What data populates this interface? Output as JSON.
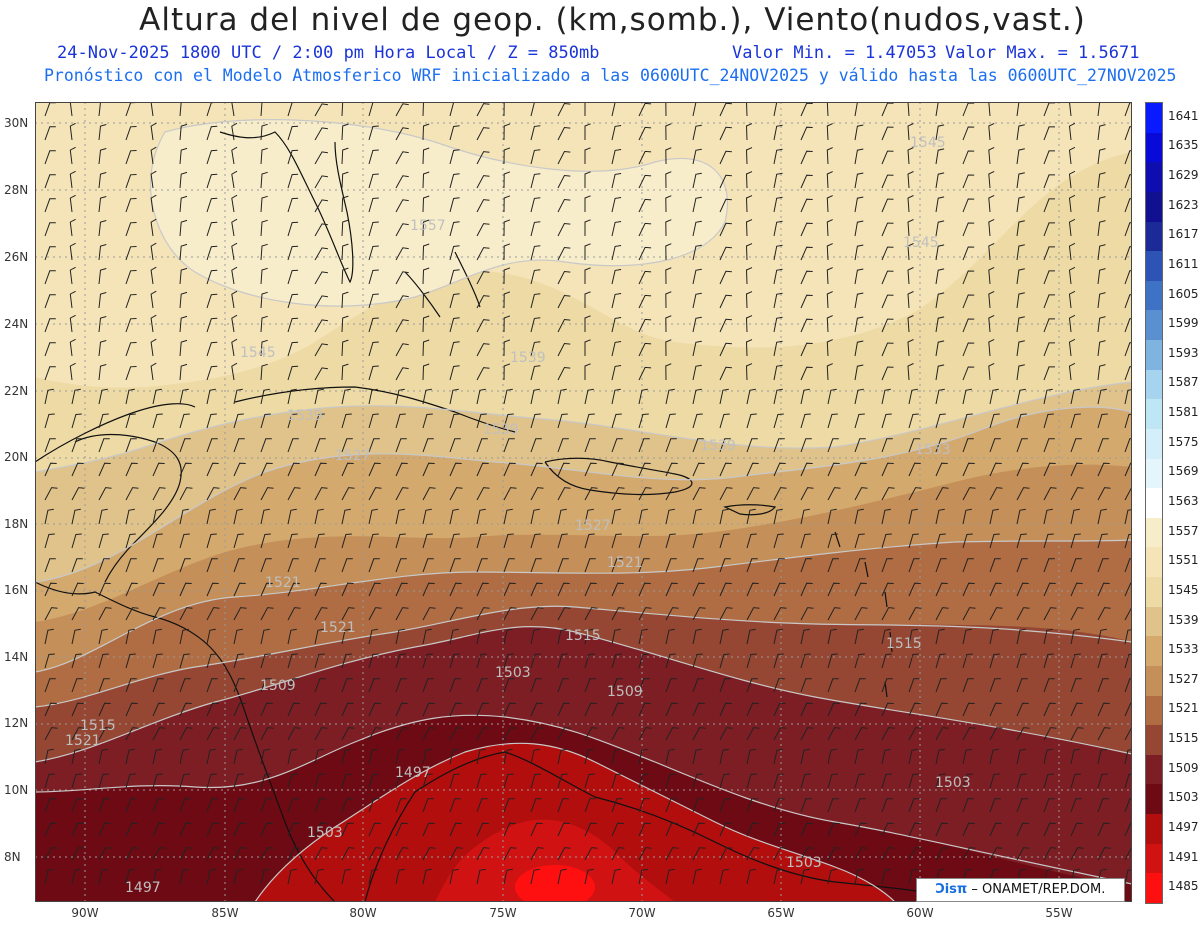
{
  "title": "Altura del nivel de geop. (km,somb.), Viento(nudos,vast.)",
  "subtitle": {
    "date_time": "24-Nov-2025  1800 UTC / 2:00 pm Hora Local / Z = 850mb",
    "min_value": "Valor Min. = 1.47053",
    "max_value": "Valor Max. = 1.5671",
    "model_info": "Pronóstico con el Modelo Atmosferico WRF inicializado a las 0600UTC_24NOV2025 y válido hasta las  0600UTC_27NOV2025"
  },
  "latitude_labels": [
    "30N",
    "28N",
    "26N",
    "24N",
    "22N",
    "20N",
    "18N",
    "16N",
    "14N",
    "12N",
    "10N",
    "8N"
  ],
  "longitude_labels": [
    "90W",
    "85W",
    "80W",
    "75W",
    "70W",
    "65W",
    "60W",
    "55W"
  ],
  "colorbar": {
    "levels": [
      "1641",
      "1635",
      "1629",
      "1623",
      "1617",
      "1611",
      "1605",
      "1599",
      "1593",
      "1587",
      "1581",
      "1575",
      "1569",
      "1563",
      "1557",
      "1551",
      "1545",
      "1539",
      "1533",
      "1527",
      "1521",
      "1515",
      "1509",
      "1503",
      "1497",
      "1491",
      "1485"
    ],
    "colors": [
      "#0a1aff",
      "#0a0ad8",
      "#0d0db0",
      "#101090",
      "#1c2a98",
      "#2d54b4",
      "#3d72c4",
      "#5a8fd0",
      "#7fb3e0",
      "#a6d4ee",
      "#bfe6f5",
      "#d4eff9",
      "#e4f6fc",
      "#ffffff",
      "#f8edcb",
      "#f4e4b8",
      "#eddaa4",
      "#e0c38a",
      "#d4a96e",
      "#c48f58",
      "#b06d44",
      "#954733",
      "#7d1e24",
      "#6e0a14",
      "#b20e0e",
      "#d11212",
      "#ff1010"
    ]
  },
  "contour_labels": [
    "1557",
    "1545",
    "1545",
    "1545",
    "1539",
    "1539",
    "1539",
    "1539",
    "1533",
    "1527",
    "1527",
    "1521",
    "1521",
    "1521",
    "1515",
    "1515",
    "1509",
    "1509",
    "1503",
    "1503",
    "1503",
    "1503",
    "1497",
    "1497",
    "1521",
    "1515"
  ],
  "credit": {
    "logo": "Ͻisπ",
    "text": " – ONAMET/REP.DOM."
  },
  "map_extent": {
    "lon_range": [
      -92,
      -53
    ],
    "lat_range": [
      7,
      31
    ]
  }
}
